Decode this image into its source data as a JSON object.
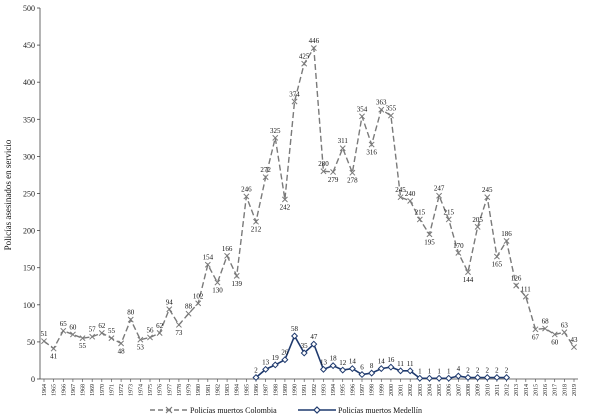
{
  "chart_data": {
    "type": "line",
    "title": "",
    "xlabel": "",
    "ylabel": "Policías asesinados en servicio",
    "ylim": [
      0,
      500
    ],
    "yticks": [
      0,
      50,
      100,
      150,
      200,
      250,
      300,
      350,
      400,
      450,
      500
    ],
    "grid": false,
    "legend_position": "bottom-center",
    "x": [
      1964,
      1965,
      1966,
      1967,
      1968,
      1969,
      1970,
      1971,
      1972,
      1973,
      1974,
      1975,
      1976,
      1977,
      1978,
      1979,
      1980,
      1981,
      1982,
      1983,
      1984,
      1985,
      1986,
      1987,
      1988,
      1989,
      1990,
      1991,
      1992,
      1993,
      1994,
      1995,
      1996,
      1997,
      1998,
      1999,
      2000,
      2001,
      2002,
      2003,
      2004,
      2005,
      2006,
      2007,
      2008,
      2009,
      2010,
      2011,
      2012,
      2013,
      2014,
      2015,
      2016,
      2017,
      2018,
      2019
    ],
    "series": [
      {
        "name": "Policías muertos Colombia",
        "color": "#7a7a7a",
        "dash": "dashed",
        "marker": "x",
        "values": [
          51,
          41,
          65,
          60,
          55,
          57,
          62,
          55,
          48,
          80,
          53,
          56,
          62,
          94,
          73,
          88,
          102,
          154,
          130,
          166,
          139,
          246,
          212,
          272,
          325,
          242,
          374,
          425,
          446,
          280,
          279,
          311,
          278,
          354,
          316,
          363,
          355,
          245,
          240,
          215,
          195,
          247,
          215,
          170,
          144,
          205,
          245,
          165,
          186,
          126,
          111,
          67,
          68,
          60,
          63,
          43
        ]
      },
      {
        "name": "Policías muertos Medellín",
        "color": "#1f3a6e",
        "dash": "solid",
        "marker": "diamond",
        "x": [
          1986,
          1987,
          1988,
          1989,
          1990,
          1991,
          1992,
          1993,
          1994,
          1995,
          1996,
          1997,
          1998,
          1999,
          2000,
          2001,
          2002,
          2003,
          2004,
          2005,
          2006,
          2007,
          2008,
          2009,
          2010,
          2011,
          2012
        ],
        "values": [
          2,
          13,
          19,
          26,
          58,
          35,
          47,
          13,
          18,
          12,
          14,
          6,
          8,
          14,
          16,
          11,
          11,
          1,
          1,
          1,
          1,
          4,
          2,
          2,
          2,
          2,
          2
        ]
      }
    ]
  }
}
